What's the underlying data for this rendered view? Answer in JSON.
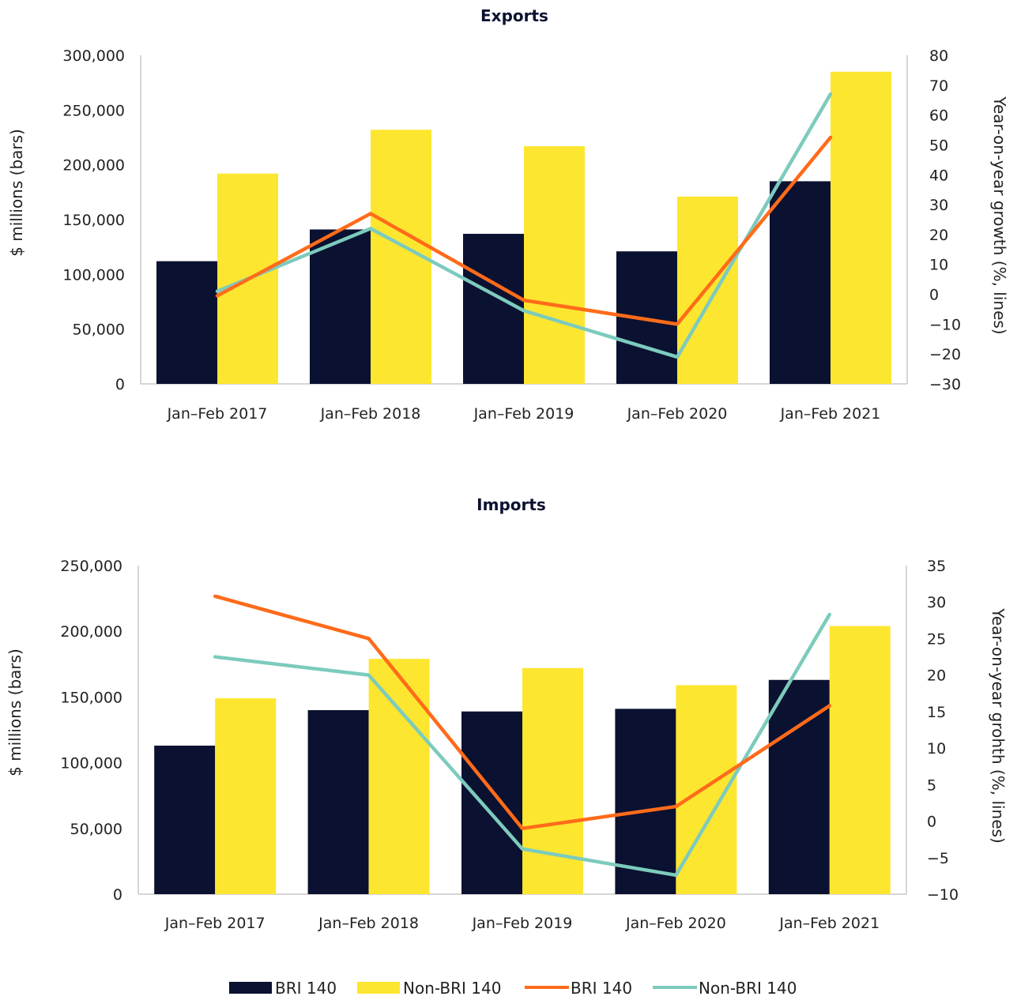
{
  "colors": {
    "bri_bar": "#0b1130",
    "non_bri_bar": "#fde62f",
    "bri_line": "#ff6b1a",
    "non_bri_line": "#7ccbbd",
    "axis": "#c8c8c8"
  },
  "chart_data": [
    {
      "type": "bar",
      "title": "Exports",
      "categories": [
        "Jan–Feb 2017",
        "Jan–Feb 2018",
        "Jan–Feb 2019",
        "Jan–Feb 2020",
        "Jan–Feb 2021"
      ],
      "ylabel": "$ millions (bars)",
      "ylabel_right": "Year-on-year growth (%, lines)",
      "ylim": [
        0,
        300000
      ],
      "ylim_right": [
        -30,
        80
      ],
      "yticks": [
        "0",
        "50,000",
        "100,000",
        "150,000",
        "200,000",
        "250,000",
        "300,000"
      ],
      "yticks_right": [
        "−30",
        "−20",
        "−10",
        "0",
        "10",
        "20",
        "30",
        "40",
        "50",
        "60",
        "70",
        "80"
      ],
      "bar_series": [
        {
          "name": "BRI 140",
          "values": [
            112000,
            141000,
            137000,
            121000,
            185000
          ]
        },
        {
          "name": "Non-BRI 140",
          "values": [
            192000,
            232000,
            217000,
            171000,
            285000
          ]
        }
      ],
      "line_series": [
        {
          "name": "BRI 140",
          "values": [
            -0.5,
            27,
            -2,
            -10,
            52.5
          ]
        },
        {
          "name": "Non-BRI 140",
          "values": [
            1,
            22,
            -5.5,
            -21,
            67
          ]
        }
      ],
      "legend": "bottom"
    },
    {
      "type": "bar",
      "title": "Imports",
      "categories": [
        "Jan–Feb 2017",
        "Jan–Feb 2018",
        "Jan–Feb 2019",
        "Jan–Feb 2020",
        "Jan–Feb 2021"
      ],
      "ylabel": "$ millions (bars)",
      "ylabel_right": "Year-on-year grohth (%, lines)",
      "ylim": [
        0,
        250000
      ],
      "ylim_right": [
        -10,
        35
      ],
      "yticks": [
        "0",
        "50,000",
        "100,000",
        "150,000",
        "200,000",
        "250,000"
      ],
      "yticks_right": [
        "−10",
        "−5",
        "0",
        "5",
        "10",
        "15",
        "20",
        "25",
        "30",
        "35"
      ],
      "bar_series": [
        {
          "name": "BRI 140",
          "values": [
            113000,
            140000,
            139000,
            141000,
            163000
          ]
        },
        {
          "name": "Non-BRI 140",
          "values": [
            149000,
            179000,
            172000,
            159000,
            204000
          ]
        }
      ],
      "line_series": [
        {
          "name": "BRI 140",
          "values": [
            30.8,
            25.0,
            -1.0,
            2.0,
            15.8
          ]
        },
        {
          "name": "Non-BRI 140",
          "values": [
            22.5,
            20.0,
            -3.8,
            -7.4,
            28.3
          ]
        }
      ],
      "legend": "bottom"
    }
  ],
  "legend": {
    "items": [
      {
        "label": "BRI 140",
        "kind": "bar",
        "series": "bri"
      },
      {
        "label": "Non-BRI 140",
        "kind": "bar",
        "series": "non_bri"
      },
      {
        "label": "BRI 140",
        "kind": "line",
        "series": "bri"
      },
      {
        "label": "Non-BRI 140",
        "kind": "line",
        "series": "non_bri"
      }
    ]
  }
}
